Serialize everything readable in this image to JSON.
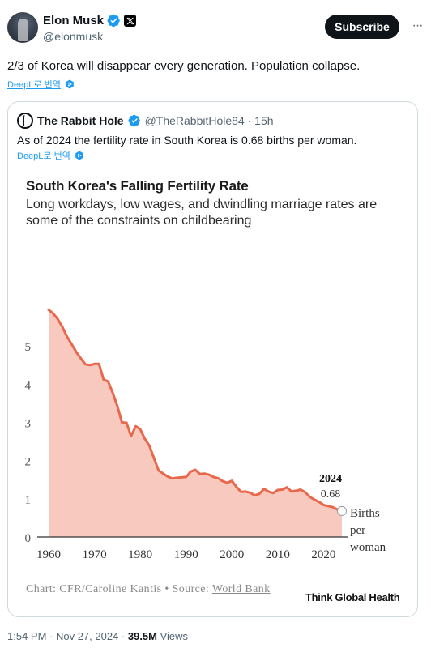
{
  "author": {
    "name": "Elon Musk",
    "handle": "@elonmusk",
    "subscribe_label": "Subscribe",
    "more_label": "···"
  },
  "tweet": {
    "text": "2/3 of Korea will disappear every generation. Population collapse.",
    "translate_label": "DeepL로 번역"
  },
  "quote": {
    "name": "The Rabbit Hole",
    "meta": "@TheRabbitHole84 · 15h",
    "text": "As of 2024 the fertility rate in South Korea is 0.68 births per woman.",
    "translate_label": "DeepL로 번역"
  },
  "chart_data": {
    "type": "area",
    "title": "South Korea's Falling Fertility Rate",
    "subtitle": "Long workdays, low wages, and dwindling marriage rates are some of the constraints on childbearing",
    "x": [
      1960,
      1961,
      1962,
      1963,
      1964,
      1965,
      1966,
      1967,
      1968,
      1969,
      1970,
      1971,
      1972,
      1973,
      1974,
      1975,
      1976,
      1977,
      1978,
      1979,
      1980,
      1981,
      1982,
      1983,
      1984,
      1985,
      1986,
      1987,
      1988,
      1989,
      1990,
      1991,
      1992,
      1993,
      1994,
      1995,
      1996,
      1997,
      1998,
      1999,
      2000,
      2001,
      2002,
      2003,
      2004,
      2005,
      2006,
      2007,
      2008,
      2009,
      2010,
      2011,
      2012,
      2013,
      2014,
      2015,
      2016,
      2017,
      2018,
      2019,
      2020,
      2021,
      2022,
      2023,
      2024
    ],
    "y": [
      5.95,
      5.85,
      5.7,
      5.5,
      5.25,
      5.05,
      4.85,
      4.68,
      4.52,
      4.5,
      4.53,
      4.53,
      4.12,
      4.07,
      3.77,
      3.43,
      3.0,
      2.99,
      2.64,
      2.9,
      2.82,
      2.57,
      2.39,
      2.06,
      1.74,
      1.66,
      1.58,
      1.53,
      1.55,
      1.56,
      1.57,
      1.71,
      1.76,
      1.65,
      1.66,
      1.63,
      1.57,
      1.54,
      1.46,
      1.42,
      1.47,
      1.31,
      1.18,
      1.19,
      1.16,
      1.09,
      1.13,
      1.26,
      1.19,
      1.15,
      1.23,
      1.24,
      1.3,
      1.19,
      1.21,
      1.24,
      1.17,
      1.05,
      0.98,
      0.92,
      0.84,
      0.81,
      0.78,
      0.72,
      0.68
    ],
    "xticks": [
      "1960",
      "1970",
      "1980",
      "1990",
      "2000",
      "2010",
      "2020"
    ],
    "yticks": [
      "0",
      "1",
      "2",
      "3",
      "4",
      "5"
    ],
    "xlim": [
      1960,
      2024
    ],
    "ylim": [
      0,
      6
    ],
    "annotation": {
      "year": "2024",
      "value": "0.68",
      "unit": [
        "Births",
        "per",
        "woman"
      ]
    },
    "source_prefix": "Chart: CFR/Caroline Kantis • Source:",
    "source_link": "World Bank",
    "brand": "Think Global Health",
    "fill_color": "#f8c9bf",
    "line_color": "#e8684b"
  },
  "footer": {
    "time": "1:54 PM · Nov 27, 2024 · ",
    "views": "39.5M",
    "views_label": " Views"
  }
}
